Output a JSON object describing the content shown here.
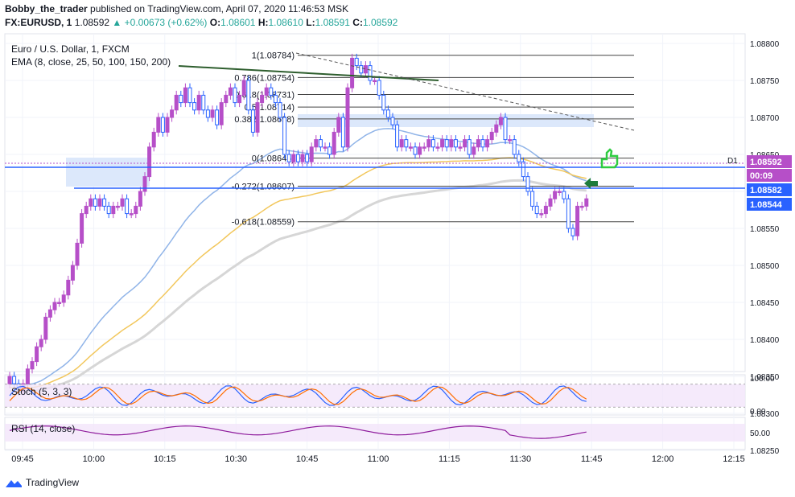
{
  "header": {
    "publisher": "Bobby_the_trader",
    "published_text": "published on TradingView.com, April 07, 2020 11:46:53 MSK",
    "symbol": "FX:EURUSD, 1",
    "last": "1.08592",
    "change": "+0.00673 (+0.62%)",
    "open_label": "O:",
    "open": "1.08601",
    "high_label": "H:",
    "high": "1.08610",
    "low_label": "L:",
    "low": "1.08591",
    "close_label": "C:",
    "close": "1.08592"
  },
  "legend": {
    "title": "Euro / U.S. Dollar, 1, FXCM",
    "ema": "EMA (8, close, 25, 50, 100, 150, 200)"
  },
  "price_axis": {
    "ticks": [
      "1.08800",
      "1.08750",
      "1.08700",
      "1.08650",
      "1.08600",
      "1.08550",
      "1.08500",
      "1.08450",
      "1.08400",
      "1.08350",
      "1.08300",
      "1.08250"
    ],
    "tags": [
      {
        "text": "1.08592",
        "color": "#b64fc8"
      },
      {
        "text": "00:09",
        "color": "#b64fc8"
      },
      {
        "text": "1.08582",
        "color": "#2962ff"
      },
      {
        "text": "1.08544",
        "color": "#2962ff"
      }
    ],
    "d1_label": "D1"
  },
  "fib": {
    "levels": [
      {
        "label": "1(1.08784)",
        "price": 1.08784
      },
      {
        "label": "0.786(1.08754)",
        "price": 1.08754
      },
      {
        "label": "0.618(1.08731)",
        "price": 1.08731
      },
      {
        "label": "0.5(1.08714)",
        "price": 1.08714
      },
      {
        "label": "0.382(1.08698)",
        "price": 1.08698
      },
      {
        "label": "0(1.08645)",
        "price": 1.08645
      },
      {
        "label": "-0.272(1.08607)",
        "price": 1.08607
      },
      {
        "label": "-0.618(1.08559)",
        "price": 1.08559
      }
    ]
  },
  "stoch": {
    "label": "Stoch (5, 3, 3)",
    "ticks": [
      "100.00",
      "0.00"
    ]
  },
  "rsi": {
    "label": "RSI (14, close)",
    "ticks": [
      "50.00"
    ]
  },
  "time_axis": [
    "09:45",
    "10:00",
    "10:15",
    "10:30",
    "10:45",
    "11:00",
    "11:15",
    "11:30",
    "11:45",
    "12:00",
    "12:15"
  ],
  "footer": {
    "brand": "TradingView"
  },
  "colors": {
    "up_candle": "#b64fc8",
    "down_candle": "#2962ff",
    "ema_blue": "#90b4e8",
    "ema_yellow": "#f2c75c",
    "ema_grey": "#d6d6d6",
    "level_line": "#2962ff",
    "stoch_k": "#2962ff",
    "stoch_d": "#ff6d00",
    "rsi": "#8e1b9c",
    "pane_bg": "#f3e5fa"
  },
  "chart_data": {
    "type": "candlestick",
    "title": "Euro / U.S. Dollar, 1, FXCM",
    "y_range": [
      1.0821,
      1.0882
    ],
    "price_levels": [
      1.08592,
      1.08582,
      1.08544
    ],
    "x_labels": [
      "09:45",
      "10:00",
      "10:15",
      "10:30",
      "10:45",
      "11:00",
      "11:15",
      "11:30",
      "11:45",
      "12:00",
      "12:15"
    ],
    "close_path": [
      1.0835,
      1.0834,
      1.0833,
      1.0834,
      1.0836,
      1.0837,
      1.0839,
      1.084,
      1.0843,
      1.0844,
      1.0845,
      1.0845,
      1.0846,
      1.0848,
      1.085,
      1.0853,
      1.0857,
      1.0858,
      1.0859,
      1.0858,
      1.0859,
      1.0858,
      1.0857,
      1.0858,
      1.0858,
      1.0859,
      1.0857,
      1.0857,
      1.0858,
      1.086,
      1.0862,
      1.0866,
      1.0868,
      1.087,
      1.0868,
      1.087,
      1.0871,
      1.0873,
      1.0872,
      1.0874,
      1.0872,
      1.0871,
      1.0873,
      1.0871,
      1.087,
      1.0871,
      1.0869,
      1.0872,
      1.0873,
      1.0874,
      1.0872,
      1.0873,
      1.0875,
      1.0871,
      1.0868,
      1.0872,
      1.0873,
      1.0874,
      1.0873,
      1.0872,
      1.087,
      1.0865,
      1.0864,
      1.0865,
      1.0864,
      1.0865,
      1.0864,
      1.0866,
      1.0867,
      1.0866,
      1.0866,
      1.0865,
      1.0868,
      1.087,
      1.0866,
      1.0874,
      1.0878,
      1.0877,
      1.0876,
      1.0877,
      1.0875,
      1.0875,
      1.0873,
      1.0871,
      1.087,
      1.0869,
      1.0866,
      1.0867,
      1.0866,
      1.0866,
      1.0865,
      1.0866,
      1.0866,
      1.0867,
      1.0866,
      1.0866,
      1.0867,
      1.0866,
      1.0867,
      1.0866,
      1.0866,
      1.0867,
      1.0865,
      1.0866,
      1.0867,
      1.0866,
      1.0867,
      1.0868,
      1.0869,
      1.087,
      1.0867,
      1.0867,
      1.0865,
      1.0864,
      1.0862,
      1.086,
      1.0858,
      1.0857,
      1.0857,
      1.0858,
      1.0859,
      1.086,
      1.086,
      1.0859,
      1.0855,
      1.0854,
      1.0858,
      1.0858,
      1.0859
    ]
  }
}
